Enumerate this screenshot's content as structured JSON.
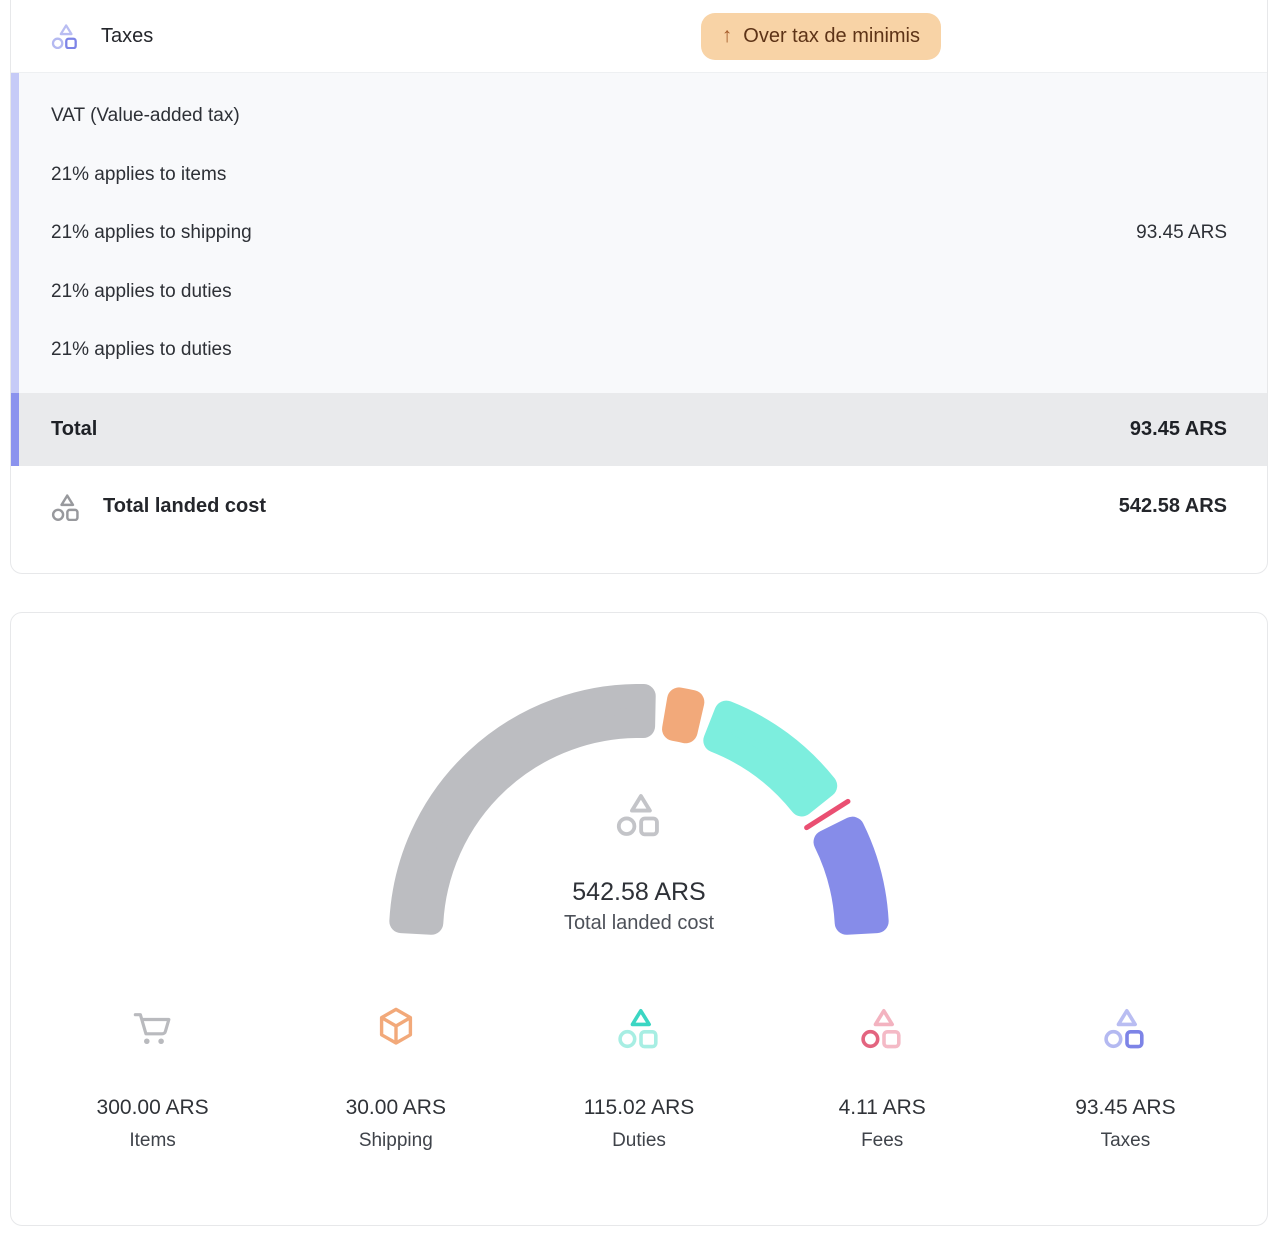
{
  "colors": {
    "badge_bg": "#f8d3a6",
    "badge_text": "#5d3317",
    "badge_arrow": "#a65d2c",
    "bar_light": "#c6cbf7",
    "bar_dark": "#8b93ee",
    "section_bg": "#f8f9fb",
    "total_bg": "#e9eaec",
    "card_border": "#e7e8ea"
  },
  "icons": {
    "taxes_header": {
      "type": "shapes",
      "tri": "#b9bdf2",
      "cir": "#b4b9f1",
      "sq": "#7d84e7",
      "size": 28
    },
    "landed_cost": {
      "type": "shapes",
      "tri": "#98999d",
      "cir": "#98999d",
      "sq": "#98999d",
      "size": 30
    },
    "gauge_center": {
      "type": "shapes",
      "tri": "#c3c4c8",
      "cir": "#c3c4c8",
      "sq": "#c3c4c8",
      "size": 47
    }
  },
  "tax_card": {
    "title": "Taxes",
    "badge": {
      "arrow": "↑",
      "label": "Over tax de minimis"
    },
    "breakdown": {
      "rows": [
        "VAT (Value-added tax)",
        "21% applies to items",
        "21% applies to shipping",
        "21% applies to duties",
        "21% applies to duties"
      ],
      "amount": "93.45 ARS"
    },
    "total": {
      "label": "Total",
      "amount": "93.45 ARS"
    },
    "landed": {
      "label": "Total landed cost",
      "amount": "542.58 ARS"
    }
  },
  "chart_data": {
    "type": "gauge-donut",
    "title": "Total landed cost",
    "currency": "ARS",
    "total": 542.58,
    "center_text": {
      "value": "542.58 ARS",
      "label": "Total landed cost"
    },
    "start_angle_deg": 180,
    "end_angle_deg": 0,
    "gap_deg": 2.4,
    "segments": [
      {
        "name": "Items",
        "value": 300.0,
        "display": "300.00 ARS",
        "color": "#bcbdc1"
      },
      {
        "name": "Shipping",
        "value": 30.0,
        "display": "30.00 ARS",
        "color": "#f2a97a"
      },
      {
        "name": "Duties",
        "value": 115.02,
        "display": "115.02 ARS",
        "color": "#7deede"
      },
      {
        "name": "Fees",
        "value": 4.11,
        "display": "4.11 ARS",
        "color": "#ea4f72"
      },
      {
        "name": "Taxes",
        "value": 93.45,
        "display": "93.45 ARS",
        "color": "#868ce9"
      }
    ],
    "legend": [
      {
        "label": "Items",
        "amount": "300.00 ARS",
        "icon": {
          "type": "cart",
          "color": "#b9babe",
          "size": 42
        }
      },
      {
        "label": "Shipping",
        "amount": "30.00 ARS",
        "icon": {
          "type": "cube",
          "color": "#f2a97a",
          "size": 40
        }
      },
      {
        "label": "Duties",
        "amount": "115.02 ARS",
        "icon": {
          "type": "shapes",
          "tri": "#3bd6c3",
          "cir": "#a7eee3",
          "sq": "#a7eee3",
          "size": 44
        }
      },
      {
        "label": "Fees",
        "amount": "4.11 ARS",
        "icon": {
          "type": "shapes",
          "tri": "#f3b3c0",
          "cir": "#e3647f",
          "sq": "#f4bac6",
          "size": 44
        }
      },
      {
        "label": "Taxes",
        "amount": "93.45 ARS",
        "icon": {
          "type": "shapes",
          "tri": "#b9bdf2",
          "cir": "#b4b9f1",
          "sq": "#7d84e7",
          "size": 44
        }
      }
    ]
  }
}
